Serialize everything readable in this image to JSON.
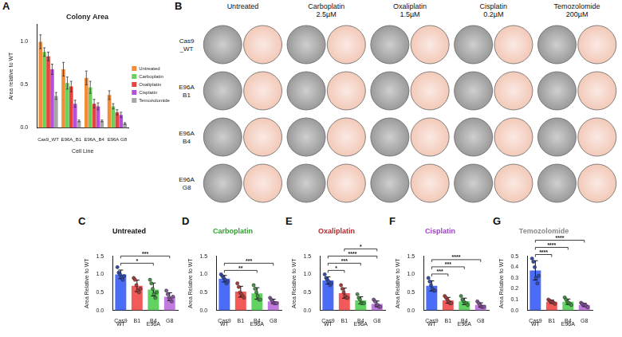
{
  "chart_data": [
    {
      "panel": "A",
      "type": "bar",
      "title": "Colony Area",
      "x_label": "Cell Line",
      "y_label": "Area relative to WT",
      "categories": [
        "Cas9_WT",
        "E96A_B1",
        "E96A_B4",
        "E96A G8"
      ],
      "series": [
        {
          "name": "Untreated",
          "color": "#f28c38",
          "values": [
            1.0,
            0.68,
            0.58,
            0.38
          ],
          "errors": [
            0.08,
            0.08,
            0.08,
            0.05
          ]
        },
        {
          "name": "Carboplatin",
          "color": "#6ccf5a",
          "values": [
            0.88,
            0.52,
            0.47,
            0.25
          ],
          "errors": [
            0.05,
            0.07,
            0.07,
            0.03
          ]
        },
        {
          "name": "Oxaliplatin",
          "color": "#e8423f",
          "values": [
            0.83,
            0.48,
            0.28,
            0.18
          ],
          "errors": [
            0.05,
            0.06,
            0.05,
            0.03
          ]
        },
        {
          "name": "Cisplatin",
          "color": "#b550d8",
          "values": [
            0.68,
            0.28,
            0.25,
            0.15
          ],
          "errors": [
            0.06,
            0.04,
            0.04,
            0.03
          ]
        },
        {
          "name": "Temozolomide",
          "color": "#a6a6a6",
          "values": [
            0.37,
            0.08,
            0.08,
            0.05
          ],
          "errors": [
            0.04,
            0.01,
            0.01,
            0.01
          ]
        }
      ],
      "ylim": [
        0,
        1.2
      ],
      "yticks": [
        {
          "value": 0,
          "label": "0.0"
        },
        {
          "value": 0.5,
          "label": "0.5"
        },
        {
          "value": 1,
          "label": "1.0"
        }
      ],
      "grid": false,
      "legend": "right"
    },
    {
      "panel": "C",
      "type": "bar",
      "title": "Untreated",
      "y_label": "Area Relative to WT",
      "categories": [
        "Cas9",
        "B1",
        "B4",
        "G8"
      ],
      "x_groups": [
        {
          "label": "WT",
          "from": "Cas9",
          "to": "Cas9"
        },
        {
          "label": "E96A",
          "from": "B1",
          "to": "G8"
        }
      ],
      "colors": [
        "#4a6cf7",
        "#f25a5a",
        "#62d262",
        "#c07ae0"
      ],
      "values": [
        1.0,
        0.68,
        0.58,
        0.38
      ],
      "errors": [
        0.12,
        0.16,
        0.18,
        0.11
      ],
      "points": [
        [
          1.2,
          1.05,
          1.0,
          0.92,
          0.85,
          0.95
        ],
        [
          0.9,
          0.85,
          0.7,
          0.55,
          0.5,
          0.6
        ],
        [
          0.85,
          0.75,
          0.6,
          0.45,
          0.35,
          0.5
        ],
        [
          0.55,
          0.45,
          0.35,
          0.3,
          0.25,
          0.38
        ]
      ],
      "significance": [
        {
          "from": "Cas9",
          "to": "B4",
          "label": "*"
        },
        {
          "from": "Cas9",
          "to": "G8",
          "label": "***"
        }
      ],
      "ylim": [
        0,
        1.5
      ],
      "yticks": [
        {
          "value": 0,
          "label": "0.0"
        },
        {
          "value": 0.5,
          "label": "0.5"
        },
        {
          "value": 1,
          "label": "1.0"
        },
        {
          "value": 1.5,
          "label": "1.5"
        }
      ],
      "grid": false
    },
    {
      "panel": "D",
      "type": "bar",
      "title": "Carboplatin",
      "y_label": "Area Relative to WT",
      "categories": [
        "Cas9",
        "B1",
        "B4",
        "G8"
      ],
      "x_groups": [
        {
          "label": "WT",
          "from": "Cas9",
          "to": "Cas9"
        },
        {
          "label": "E96A",
          "from": "B1",
          "to": "G8"
        }
      ],
      "colors": [
        "#4a6cf7",
        "#f25a5a",
        "#62d262",
        "#c07ae0"
      ],
      "values": [
        0.88,
        0.52,
        0.47,
        0.25
      ],
      "errors": [
        0.09,
        0.15,
        0.16,
        0.06
      ],
      "points": [
        [
          1.0,
          0.95,
          0.9,
          0.85,
          0.75,
          0.8
        ],
        [
          0.75,
          0.65,
          0.5,
          0.45,
          0.4,
          0.35
        ],
        [
          0.7,
          0.6,
          0.5,
          0.4,
          0.3,
          0.3
        ],
        [
          0.35,
          0.3,
          0.25,
          0.2,
          0.2,
          0.2
        ]
      ],
      "significance": [
        {
          "from": "Cas9",
          "to": "B4",
          "label": "**"
        },
        {
          "from": "Cas9",
          "to": "G8",
          "label": "***"
        }
      ],
      "ylim": [
        0,
        1.5
      ],
      "yticks": [
        {
          "value": 0,
          "label": "0.0"
        },
        {
          "value": 0.5,
          "label": "0.5"
        },
        {
          "value": 1,
          "label": "1.0"
        },
        {
          "value": 1.5,
          "label": "1.5"
        }
      ],
      "grid": false
    },
    {
      "panel": "E",
      "type": "bar",
      "title": "Oxaliplatin",
      "y_label": "Area Relative to WT",
      "categories": [
        "Cas9",
        "B1",
        "B4",
        "G8"
      ],
      "x_groups": [
        {
          "label": "WT",
          "from": "Cas9",
          "to": "Cas9"
        },
        {
          "label": "E96A",
          "from": "B1",
          "to": "G8"
        }
      ],
      "colors": [
        "#4a6cf7",
        "#f25a5a",
        "#62d262",
        "#c07ae0"
      ],
      "values": [
        0.83,
        0.48,
        0.28,
        0.18
      ],
      "errors": [
        0.1,
        0.14,
        0.1,
        0.08
      ],
      "points": [
        [
          1.0,
          0.9,
          0.85,
          0.8,
          0.7,
          0.75
        ],
        [
          0.7,
          0.6,
          0.5,
          0.4,
          0.35,
          0.35
        ],
        [
          0.45,
          0.35,
          0.3,
          0.2,
          0.2,
          0.2
        ],
        [
          0.3,
          0.25,
          0.15,
          0.15,
          0.1,
          0.1
        ]
      ],
      "significance": [
        {
          "from": "Cas9",
          "to": "B1",
          "label": "*"
        },
        {
          "from": "Cas9",
          "to": "B4",
          "label": "***"
        },
        {
          "from": "Cas9",
          "to": "G8",
          "label": "****"
        },
        {
          "from": "B1",
          "to": "G8",
          "label": "*"
        }
      ],
      "ylim": [
        0,
        1.5
      ],
      "yticks": [
        {
          "value": 0,
          "label": "0.0"
        },
        {
          "value": 0.5,
          "label": "0.5"
        },
        {
          "value": 1,
          "label": "1.0"
        },
        {
          "value": 1.5,
          "label": "1.5"
        }
      ],
      "grid": false
    },
    {
      "panel": "F",
      "type": "bar",
      "title": "Cisplatin",
      "y_label": "Area Relative to WT",
      "categories": [
        "Cas9",
        "B1",
        "B4",
        "G8"
      ],
      "x_groups": [
        {
          "label": "WT",
          "from": "Cas9",
          "to": "Cas9"
        },
        {
          "label": "E96A",
          "from": "B1",
          "to": "G8"
        }
      ],
      "colors": [
        "#4a6cf7",
        "#f25a5a",
        "#62d262",
        "#c07ae0"
      ],
      "values": [
        0.68,
        0.28,
        0.25,
        0.15
      ],
      "errors": [
        0.14,
        0.08,
        0.09,
        0.06
      ],
      "points": [
        [
          0.9,
          0.8,
          0.7,
          0.6,
          0.55,
          0.55
        ],
        [
          0.4,
          0.35,
          0.3,
          0.25,
          0.2,
          0.2
        ],
        [
          0.4,
          0.3,
          0.25,
          0.2,
          0.2,
          0.15
        ],
        [
          0.25,
          0.2,
          0.15,
          0.1,
          0.1,
          0.1
        ]
      ],
      "significance": [
        {
          "from": "Cas9",
          "to": "B1",
          "label": "***"
        },
        {
          "from": "Cas9",
          "to": "B4",
          "label": "***"
        },
        {
          "from": "Cas9",
          "to": "G8",
          "label": "****"
        }
      ],
      "ylim": [
        0,
        1.5
      ],
      "yticks": [
        {
          "value": 0,
          "label": "0.0"
        },
        {
          "value": 0.5,
          "label": "0.5"
        },
        {
          "value": 1,
          "label": "1.0"
        },
        {
          "value": 1.5,
          "label": "1.5"
        }
      ],
      "grid": false
    },
    {
      "panel": "G",
      "type": "bar",
      "title": "Temozolomide",
      "y_label": "Area Relative to WT",
      "categories": [
        "Cas9",
        "B1",
        "B4",
        "G8"
      ],
      "x_groups": [
        {
          "label": "WT",
          "from": "Cas9",
          "to": "Cas9"
        },
        {
          "label": "E96A",
          "from": "B1",
          "to": "G8"
        }
      ],
      "colors": [
        "#4a6cf7",
        "#f25a5a",
        "#62d262",
        "#c07ae0"
      ],
      "values": [
        0.37,
        0.08,
        0.08,
        0.05
      ],
      "errors": [
        0.09,
        0.015,
        0.025,
        0.015
      ],
      "points": [
        [
          0.48,
          0.45,
          0.4,
          0.3,
          0.25,
          0.32
        ],
        [
          0.1,
          0.09,
          0.08,
          0.08,
          0.07,
          0.06
        ],
        [
          0.12,
          0.1,
          0.08,
          0.07,
          0.06,
          0.05
        ],
        [
          0.07,
          0.06,
          0.05,
          0.05,
          0.04,
          0.03
        ]
      ],
      "significance": [
        {
          "from": "Cas9",
          "to": "B1",
          "label": "****"
        },
        {
          "from": "Cas9",
          "to": "B4",
          "label": "****"
        },
        {
          "from": "Cas9",
          "to": "G8",
          "label": "****"
        }
      ],
      "ylim": [
        0,
        0.5
      ],
      "yticks": [
        {
          "value": 0,
          "label": "0.0"
        },
        {
          "value": 0.1,
          "label": "0.1"
        },
        {
          "value": 0.2,
          "label": "0.2"
        },
        {
          "value": 0.3,
          "label": "0.3"
        },
        {
          "value": 0.4,
          "label": "0.4"
        },
        {
          "value": 0.5,
          "label": "0.5"
        }
      ],
      "grid": false
    }
  ],
  "image_grid": {
    "panel": "B",
    "column_labels": [
      "Untreated",
      "Carboplatin 2.5µM",
      "Oxaliplatin 1.5µM",
      "Cisplatin 0.2µM",
      "Temozolomide 200µM"
    ],
    "row_labels": [
      "Cas9 _WT",
      "E96A B1",
      "E96A B4",
      "E96A G8"
    ]
  }
}
